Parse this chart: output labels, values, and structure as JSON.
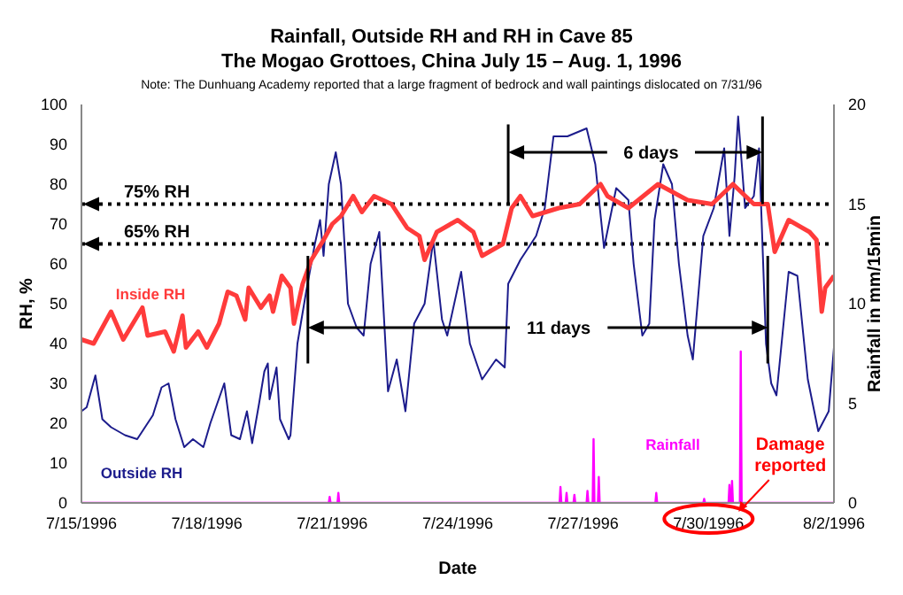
{
  "chart_data": {
    "type": "line",
    "title": "Rainfall, Outside RH and RH in Cave 85",
    "subtitle": "The Mogao Grottoes, China July 15 – Aug. 1, 1996",
    "xlabel": "Date",
    "ylabel": "RH, %",
    "y2label": "Rainfall in mm/15min",
    "annotations": [
      "Note: The Dunhuang Academy reported that a large fragment of bedrock and wall paintings dislocated on 7/31/96",
      {
        "text": "6 days",
        "x": "1996-07-31T07:00",
        "y": 88
      },
      {
        "text": "11 days",
        "x": "1996-07-31T10:00",
        "y": 44
      },
      {
        "text": "Damage reported",
        "x": "1996-07-30T18:30",
        "y": 0
      }
    ],
    "xlim": [
      "1996-07-15",
      "1996-08-02"
    ],
    "xticks": [
      {
        "value": "1996-07-15",
        "label": "7/15/1996"
      },
      {
        "value": "1996-07-18",
        "label": "7/18/1996"
      },
      {
        "value": "1996-07-21",
        "label": "7/21/1996"
      },
      {
        "value": "1996-07-24",
        "label": "7/24/1996"
      },
      {
        "value": "1996-07-27",
        "label": "7/27/1996"
      },
      {
        "value": "1996-07-30",
        "label": "7/30/1996"
      },
      {
        "value": "1996-08-02",
        "label": "8/2/1996"
      }
    ],
    "ylim": [
      0,
      100
    ],
    "yticks": [
      0,
      10,
      20,
      30,
      40,
      50,
      60,
      70,
      80,
      90,
      100
    ],
    "y2lim": [
      0,
      20
    ],
    "y2ticks": [
      0,
      5,
      10,
      15,
      20
    ],
    "ref_lines": [
      {
        "axis": "y",
        "value": 75,
        "label": "75% RH",
        "color": "#000000",
        "line_style": "dotted"
      },
      {
        "axis": "y",
        "value": 65,
        "label": "65% RH",
        "color": "#000000",
        "line_style": "dotted"
      }
    ],
    "series": [
      {
        "name": "Outside RH",
        "color": "#1c1c8c",
        "x": [
          "1996-07-15T00:00",
          "1996-07-15T03:00",
          "1996-07-15T08:00",
          "1996-07-15T12:00",
          "1996-07-15T17:00",
          "1996-07-16T01:00",
          "1996-07-16T08:00",
          "1996-07-16T17:00",
          "1996-07-16T22:00",
          "1996-07-17T02:00",
          "1996-07-17T06:00",
          "1996-07-17T11:00",
          "1996-07-17T16:00",
          "1996-07-17T22:00",
          "1996-07-18T02:00",
          "1996-07-18T10:00",
          "1996-07-18T14:00",
          "1996-07-18T19:00",
          "1996-07-18T23:00",
          "1996-07-19T02:00",
          "1996-07-19T06:00",
          "1996-07-19T09:00",
          "1996-07-19T11:00",
          "1996-07-19T12:00",
          "1996-07-19T16:00",
          "1996-07-19T18:00",
          "1996-07-19T23:00",
          "1996-07-20T00:00",
          "1996-07-20T04:00",
          "1996-07-20T09:00",
          "1996-07-20T14:00",
          "1996-07-20T17:00",
          "1996-07-20T19:00",
          "1996-07-20T22:00",
          "1996-07-21T02:00",
          "1996-07-21T05:00",
          "1996-07-21T09:00",
          "1996-07-21T14:00",
          "1996-07-21T18:00",
          "1996-07-21T22:00",
          "1996-07-22T03:00",
          "1996-07-22T08:00",
          "1996-07-22T13:00",
          "1996-07-22T18:00",
          "1996-07-22T23:00",
          "1996-07-23T05:00",
          "1996-07-23T10:00",
          "1996-07-23T15:00",
          "1996-07-23T18:00",
          "1996-07-24T02:00",
          "1996-07-24T07:00",
          "1996-07-24T14:00",
          "1996-07-24T22:00",
          "1996-07-25T03:00",
          "1996-07-25T05:00",
          "1996-07-25T12:00",
          "1996-07-25T21:00",
          "1996-07-26T02:00",
          "1996-07-26T07:00",
          "1996-07-26T15:00",
          "1996-07-27T02:00",
          "1996-07-27T07:00",
          "1996-07-27T12:00",
          "1996-07-27T19:00",
          "1996-07-28T02:00",
          "1996-07-28T05:00",
          "1996-07-28T10:00",
          "1996-07-28T14:00",
          "1996-07-28T17:00",
          "1996-07-28T22:00",
          "1996-07-29T03:00",
          "1996-07-29T07:00",
          "1996-07-29T12:00",
          "1996-07-29T15:00",
          "1996-07-29T21:00",
          "1996-07-30T03:00",
          "1996-07-30T09:00",
          "1996-07-30T12:00",
          "1996-07-30T15:00",
          "1996-07-30T17:00",
          "1996-07-30T21:00",
          "1996-07-31T02:00",
          "1996-07-31T05:00",
          "1996-07-31T09:00",
          "1996-07-31T12:00",
          "1996-07-31T15:00",
          "1996-07-31T22:00",
          "1996-08-01T03:00",
          "1996-08-01T09:00",
          "1996-08-01T15:00",
          "1996-08-01T21:00",
          "1996-08-02T00:00"
        ],
        "values": [
          23,
          24,
          32,
          21,
          19,
          17,
          16,
          22,
          29,
          30,
          21,
          14,
          16,
          14,
          20,
          30,
          17,
          16,
          23,
          15,
          25,
          33,
          35,
          26,
          34,
          21,
          16,
          17,
          40,
          53,
          65,
          71,
          62,
          80,
          88,
          80,
          50,
          44,
          42,
          60,
          68,
          28,
          36,
          23,
          45,
          50,
          66,
          46,
          42,
          58,
          40,
          31,
          36,
          34,
          55,
          61,
          67,
          74,
          92,
          92,
          94,
          85,
          64,
          79,
          76,
          60,
          42,
          45,
          71,
          85,
          80,
          60,
          42,
          36,
          67,
          74,
          89,
          67,
          82,
          97,
          74,
          77,
          89,
          40,
          30,
          27,
          58,
          57,
          31,
          18,
          23,
          39
        ]
      },
      {
        "name": "Inside RH",
        "color": "#ff3b3b",
        "x": [
          "1996-07-15T00:00",
          "1996-07-15T07:00",
          "1996-07-15T17:00",
          "1996-07-16T00:00",
          "1996-07-16T11:00",
          "1996-07-16T14:00",
          "1996-07-17T00:00",
          "1996-07-17T05:00",
          "1996-07-17T10:00",
          "1996-07-17T12:00",
          "1996-07-17T19:00",
          "1996-07-18T00:00",
          "1996-07-18T07:00",
          "1996-07-18T12:00",
          "1996-07-18T17:00",
          "1996-07-18T22:00",
          "1996-07-19T00:00",
          "1996-07-19T07:00",
          "1996-07-19T12:00",
          "1996-07-19T14:00",
          "1996-07-19T19:00",
          "1996-07-20T00:00",
          "1996-07-20T02:00",
          "1996-07-20T07:00",
          "1996-07-20T12:00",
          "1996-07-20T19:00",
          "1996-07-21T00:00",
          "1996-07-21T05:00",
          "1996-07-21T12:00",
          "1996-07-21T17:00",
          "1996-07-22T00:00",
          "1996-07-22T10:00",
          "1996-07-22T19:00",
          "1996-07-23T02:00",
          "1996-07-23T05:00",
          "1996-07-23T12:00",
          "1996-07-24T00:00",
          "1996-07-24T09:00",
          "1996-07-24T14:00",
          "1996-07-25T02:00",
          "1996-07-25T07:00",
          "1996-07-25T12:00",
          "1996-07-25T19:00",
          "1996-07-26T10:00",
          "1996-07-26T22:00",
          "1996-07-27T10:00",
          "1996-07-27T14:00",
          "1996-07-28T02:00",
          "1996-07-28T19:00",
          "1996-07-29T12:00",
          "1996-07-30T02:00",
          "1996-07-30T14:00",
          "1996-07-31T02:00",
          "1996-07-31T10:00",
          "1996-07-31T14:00",
          "1996-07-31T22:00",
          "1996-08-01T10:00",
          "1996-08-01T14:00",
          "1996-08-01T17:00",
          "1996-08-01T19:00",
          "1996-08-02T00:00"
        ],
        "values": [
          41,
          40,
          48,
          41,
          49,
          42,
          43,
          38,
          47,
          39,
          43,
          39,
          45,
          53,
          52,
          46,
          54,
          49,
          52,
          48,
          57,
          54,
          45,
          55,
          61,
          66,
          70,
          72,
          77,
          73,
          77,
          75,
          69,
          67,
          61,
          68,
          71,
          68,
          62,
          65,
          74,
          77,
          72,
          74,
          75,
          80,
          77,
          74,
          80,
          76,
          75,
          80,
          75,
          75,
          63,
          71,
          68,
          66,
          48,
          54,
          57
        ]
      },
      {
        "name": "Rainfall",
        "color": "#ff00ff",
        "axis": "y2",
        "x": [
          "1996-07-15T00:00",
          "1996-07-20T22:00",
          "1996-07-20T22:30",
          "1996-07-20T23:00",
          "1996-07-21T03:00",
          "1996-07-21T03:30",
          "1996-07-21T04:00",
          "1996-07-26T10:30",
          "1996-07-26T11:00",
          "1996-07-26T11:30",
          "1996-07-26T14:00",
          "1996-07-26T14:30",
          "1996-07-26T15:00",
          "1996-07-26T18:30",
          "1996-07-26T19:00",
          "1996-07-26T19:30",
          "1996-07-27T02:00",
          "1996-07-27T02:30",
          "1996-07-27T03:00",
          "1996-07-27T05:30",
          "1996-07-27T06:00",
          "1996-07-27T06:30",
          "1996-07-27T08:30",
          "1996-07-27T09:00",
          "1996-07-27T09:30",
          "1996-07-28T17:30",
          "1996-07-28T18:00",
          "1996-07-28T18:30",
          "1996-07-29T21:00",
          "1996-07-29T21:30",
          "1996-07-29T22:00",
          "1996-07-30T11:30",
          "1996-07-30T12:00",
          "1996-07-30T12:30",
          "1996-07-30T13:00",
          "1996-07-30T13:30",
          "1996-07-30T14:00",
          "1996-07-30T18:00",
          "1996-07-30T18:30",
          "1996-07-30T19:00",
          "1996-08-02T00:00"
        ],
        "values": [
          0,
          0,
          0.3,
          0,
          0,
          0.5,
          0,
          0,
          0.8,
          0,
          0,
          0.5,
          0,
          0,
          0.4,
          0,
          0,
          0.6,
          0,
          0,
          3.2,
          0,
          0,
          1.3,
          0,
          0,
          0.5,
          0,
          0,
          0.2,
          0,
          0,
          0.9,
          0,
          0,
          1.1,
          0,
          0,
          7.6,
          0,
          0
        ]
      }
    ]
  }
}
